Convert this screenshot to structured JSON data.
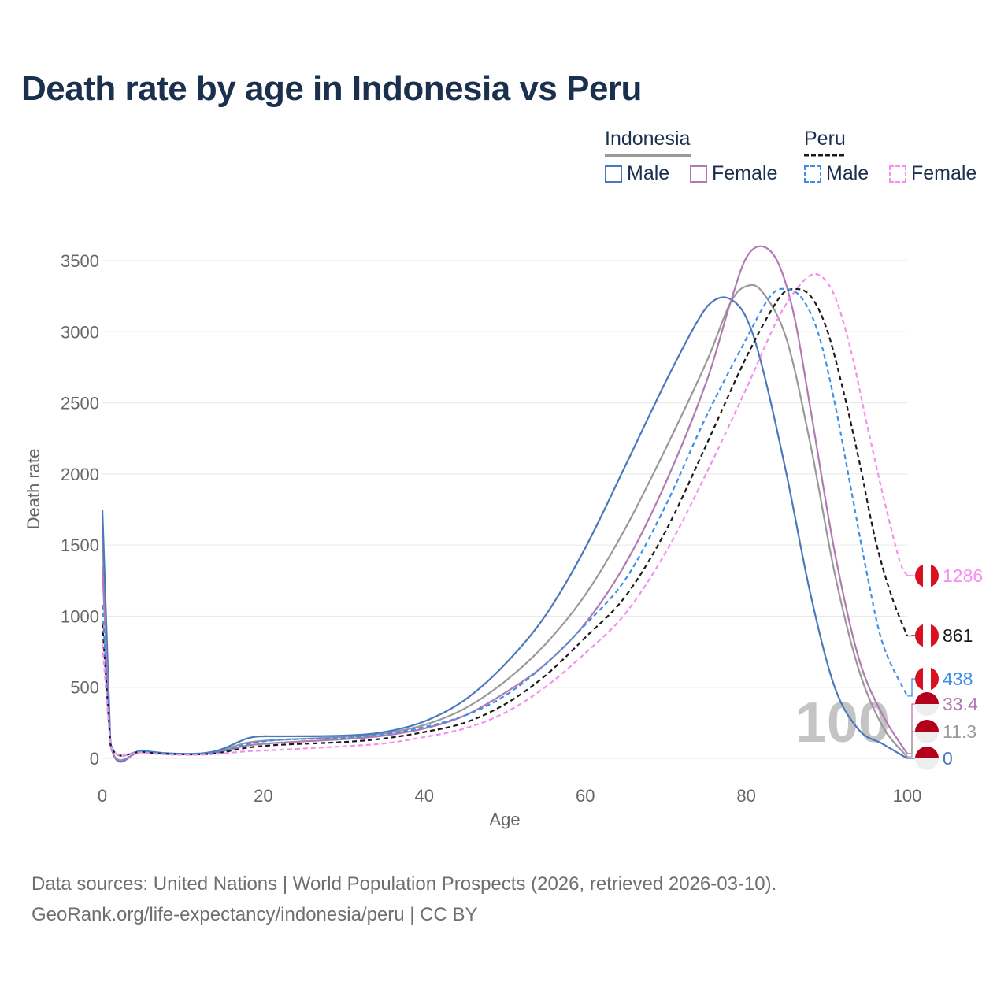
{
  "title": "Death rate by age in Indonesia vs Peru",
  "legend": {
    "groups": [
      {
        "name": "Indonesia",
        "underline_color": "#999999",
        "dash": false
      },
      {
        "name": "Peru",
        "underline_color": "#1a1a1a",
        "dash": true
      }
    ],
    "items": [
      {
        "label": "Male",
        "color": "#4a78bd",
        "dash": false
      },
      {
        "label": "Female",
        "color": "#b07ab3",
        "dash": false
      },
      {
        "label": "Male",
        "color": "#3d8fe8",
        "dash": true
      },
      {
        "label": "Female",
        "color": "#f68ef0",
        "dash": true
      }
    ]
  },
  "watermark_year": "100",
  "source_line1": "Data sources: United Nations | World Population Prospects (2026, retrieved 2026-03-10).",
  "source_line2": "GeoRank.org/life-expectancy/indonesia/peru | CC BY",
  "chart_data": {
    "type": "line",
    "xlabel": "Age",
    "ylabel": "Death rate",
    "xlim": [
      0,
      100
    ],
    "ylim": [
      0,
      3500
    ],
    "x_ticks": [
      0,
      20,
      40,
      60,
      80,
      100
    ],
    "y_ticks": [
      0,
      500,
      1000,
      1500,
      2000,
      2500,
      3000,
      3500
    ],
    "grid": true,
    "series": [
      {
        "name": "Indonesia Total",
        "color": "#999999",
        "dash": false,
        "end_label": "11.3",
        "flag": "indonesia",
        "points": [
          [
            0,
            1560
          ],
          [
            1,
            105
          ],
          [
            5,
            50
          ],
          [
            10,
            30
          ],
          [
            14,
            45
          ],
          [
            18,
            110
          ],
          [
            22,
            130
          ],
          [
            30,
            150
          ],
          [
            35,
            175
          ],
          [
            40,
            235
          ],
          [
            45,
            350
          ],
          [
            50,
            540
          ],
          [
            55,
            800
          ],
          [
            60,
            1150
          ],
          [
            65,
            1620
          ],
          [
            70,
            2180
          ],
          [
            75,
            2780
          ],
          [
            78,
            3200
          ],
          [
            80,
            3320
          ],
          [
            82,
            3280
          ],
          [
            85,
            2950
          ],
          [
            88,
            2200
          ],
          [
            91,
            1300
          ],
          [
            94,
            620
          ],
          [
            97,
            220
          ],
          [
            100,
            11.3
          ]
        ]
      },
      {
        "name": "Indonesia Male",
        "color": "#4a78bd",
        "dash": false,
        "end_label": "0",
        "flag": "indonesia",
        "points": [
          [
            0,
            1750
          ],
          [
            1,
            115
          ],
          [
            5,
            55
          ],
          [
            10,
            32
          ],
          [
            14,
            50
          ],
          [
            18,
            140
          ],
          [
            20,
            155
          ],
          [
            22,
            155
          ],
          [
            30,
            160
          ],
          [
            35,
            185
          ],
          [
            40,
            260
          ],
          [
            45,
            410
          ],
          [
            50,
            660
          ],
          [
            55,
            1000
          ],
          [
            60,
            1480
          ],
          [
            65,
            2060
          ],
          [
            70,
            2650
          ],
          [
            74,
            3080
          ],
          [
            76,
            3220
          ],
          [
            78,
            3230
          ],
          [
            80,
            3100
          ],
          [
            82,
            2750
          ],
          [
            85,
            2000
          ],
          [
            88,
            1150
          ],
          [
            91,
            500
          ],
          [
            94,
            200
          ],
          [
            97,
            100
          ],
          [
            100,
            0
          ]
        ]
      },
      {
        "name": "Indonesia Female",
        "color": "#b07ab3",
        "dash": false,
        "end_label": "33.4",
        "flag": "indonesia",
        "points": [
          [
            0,
            1350
          ],
          [
            1,
            95
          ],
          [
            5,
            45
          ],
          [
            10,
            28
          ],
          [
            14,
            40
          ],
          [
            18,
            90
          ],
          [
            22,
            110
          ],
          [
            30,
            135
          ],
          [
            35,
            160
          ],
          [
            40,
            210
          ],
          [
            45,
            300
          ],
          [
            50,
            460
          ],
          [
            55,
            660
          ],
          [
            60,
            950
          ],
          [
            65,
            1370
          ],
          [
            70,
            1940
          ],
          [
            75,
            2640
          ],
          [
            78,
            3200
          ],
          [
            80,
            3520
          ],
          [
            82,
            3600
          ],
          [
            84,
            3480
          ],
          [
            86,
            3100
          ],
          [
            88,
            2450
          ],
          [
            91,
            1450
          ],
          [
            94,
            700
          ],
          [
            97,
            300
          ],
          [
            100,
            33.4
          ]
        ]
      },
      {
        "name": "Peru Total",
        "color": "#1a1a1a",
        "dash": true,
        "end_label": "861",
        "flag": "peru",
        "points": [
          [
            0,
            950
          ],
          [
            1,
            100
          ],
          [
            5,
            45
          ],
          [
            10,
            28
          ],
          [
            14,
            35
          ],
          [
            18,
            75
          ],
          [
            22,
            95
          ],
          [
            30,
            115
          ],
          [
            35,
            140
          ],
          [
            40,
            185
          ],
          [
            45,
            250
          ],
          [
            50,
            380
          ],
          [
            55,
            580
          ],
          [
            60,
            850
          ],
          [
            65,
            1140
          ],
          [
            70,
            1600
          ],
          [
            75,
            2200
          ],
          [
            80,
            2820
          ],
          [
            84,
            3230
          ],
          [
            86,
            3300
          ],
          [
            88,
            3250
          ],
          [
            90,
            3020
          ],
          [
            92,
            2600
          ],
          [
            94,
            2100
          ],
          [
            96,
            1550
          ],
          [
            98,
            1150
          ],
          [
            100,
            861
          ]
        ]
      },
      {
        "name": "Peru Male",
        "color": "#3d8fe8",
        "dash": true,
        "end_label": "438",
        "flag": "peru",
        "points": [
          [
            0,
            1080
          ],
          [
            1,
            110
          ],
          [
            5,
            48
          ],
          [
            10,
            30
          ],
          [
            14,
            40
          ],
          [
            18,
            100
          ],
          [
            22,
            130
          ],
          [
            30,
            145
          ],
          [
            35,
            170
          ],
          [
            40,
            220
          ],
          [
            45,
            300
          ],
          [
            50,
            440
          ],
          [
            55,
            660
          ],
          [
            60,
            940
          ],
          [
            65,
            1260
          ],
          [
            70,
            1780
          ],
          [
            75,
            2400
          ],
          [
            80,
            2950
          ],
          [
            83,
            3250
          ],
          [
            85,
            3300
          ],
          [
            87,
            3230
          ],
          [
            89,
            2980
          ],
          [
            91,
            2500
          ],
          [
            93,
            1900
          ],
          [
            95,
            1300
          ],
          [
            97,
            800
          ],
          [
            100,
            438
          ]
        ]
      },
      {
        "name": "Peru Female",
        "color": "#f68ef0",
        "dash": true,
        "end_label": "1286",
        "flag": "peru",
        "points": [
          [
            0,
            800
          ],
          [
            1,
            90
          ],
          [
            5,
            40
          ],
          [
            10,
            25
          ],
          [
            14,
            30
          ],
          [
            18,
            50
          ],
          [
            22,
            60
          ],
          [
            30,
            85
          ],
          [
            35,
            105
          ],
          [
            40,
            150
          ],
          [
            45,
            210
          ],
          [
            50,
            320
          ],
          [
            55,
            500
          ],
          [
            60,
            740
          ],
          [
            65,
            1020
          ],
          [
            70,
            1450
          ],
          [
            75,
            2000
          ],
          [
            80,
            2600
          ],
          [
            84,
            3100
          ],
          [
            87,
            3350
          ],
          [
            89,
            3400
          ],
          [
            91,
            3250
          ],
          [
            93,
            2870
          ],
          [
            95,
            2350
          ],
          [
            97,
            1850
          ],
          [
            99,
            1400
          ],
          [
            100,
            1286
          ]
        ]
      }
    ]
  }
}
